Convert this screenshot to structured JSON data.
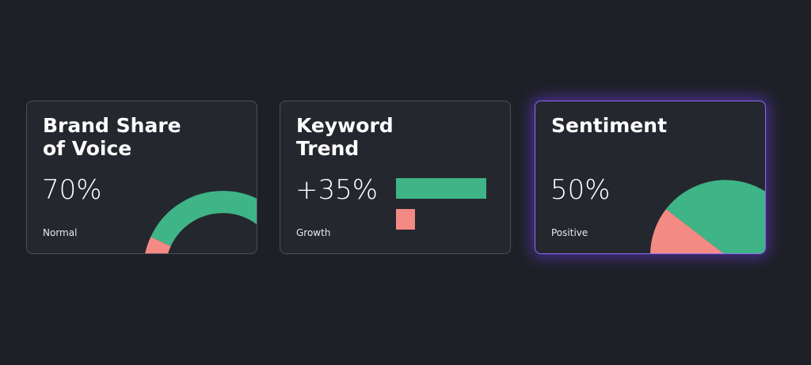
{
  "cards": [
    {
      "title": "Brand Share of Voice",
      "value": "70%",
      "label": "Normal"
    },
    {
      "title": "Keyword Trend",
      "value": "+35%",
      "label": "Growth"
    },
    {
      "title": "Sentiment",
      "value": "50%",
      "label": "Positive"
    }
  ]
}
